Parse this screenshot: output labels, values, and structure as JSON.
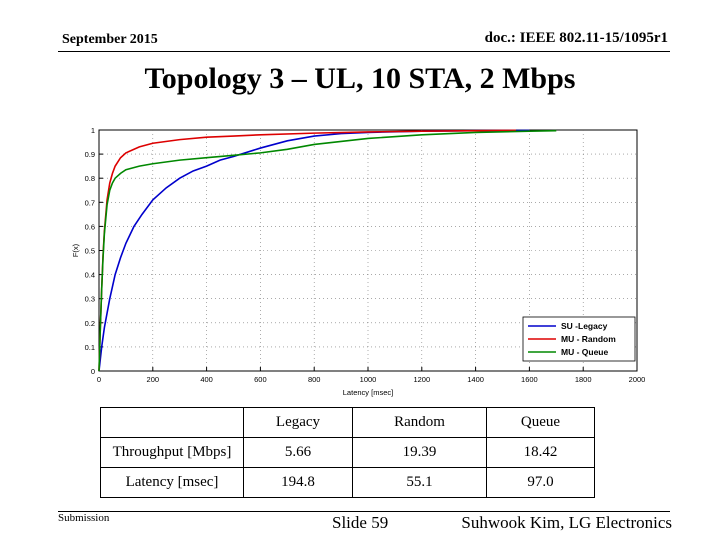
{
  "header": {
    "date": "September 2015",
    "doc": "doc.: IEEE 802.11-15/1095r1"
  },
  "title": "Topology 3 – UL, 10 STA, 2 Mbps",
  "chart_data": {
    "type": "line",
    "xlabel": "Latency [msec]",
    "ylabel": "F(x)",
    "xlim": [
      0,
      2000
    ],
    "ylim": [
      0,
      1
    ],
    "xticks": [
      0,
      200,
      400,
      600,
      800,
      1000,
      1200,
      1400,
      1600,
      1800,
      2000
    ],
    "yticks": [
      0,
      0.1,
      0.2,
      0.3,
      0.4,
      0.5,
      0.6,
      0.7,
      0.8,
      0.9,
      1
    ],
    "grid": true,
    "legend_position": "bottom-right",
    "series": [
      {
        "name": "SU -Legacy",
        "color": "#0000cc",
        "x": [
          0,
          10,
          20,
          30,
          40,
          50,
          60,
          80,
          100,
          130,
          160,
          200,
          250,
          300,
          350,
          400,
          450,
          500,
          600,
          700,
          800,
          900,
          1000,
          1200,
          1400,
          1600
        ],
        "y": [
          0,
          0.1,
          0.18,
          0.24,
          0.3,
          0.35,
          0.4,
          0.47,
          0.53,
          0.6,
          0.65,
          0.71,
          0.76,
          0.8,
          0.83,
          0.85,
          0.875,
          0.89,
          0.925,
          0.955,
          0.975,
          0.985,
          0.99,
          0.995,
          0.997,
          0.998
        ]
      },
      {
        "name": "MU - Random",
        "color": "#dd0000",
        "x": [
          0,
          5,
          10,
          15,
          20,
          30,
          40,
          50,
          60,
          80,
          100,
          150,
          200,
          300,
          400,
          500,
          600,
          800,
          1000,
          1200,
          1400,
          1500,
          1550
        ],
        "y": [
          0,
          0.18,
          0.34,
          0.48,
          0.58,
          0.71,
          0.78,
          0.82,
          0.85,
          0.885,
          0.905,
          0.93,
          0.945,
          0.96,
          0.97,
          0.975,
          0.98,
          0.987,
          0.992,
          0.995,
          0.997,
          0.998,
          0.999
        ]
      },
      {
        "name": "MU - Queue",
        "color": "#008800",
        "x": [
          0,
          5,
          10,
          15,
          20,
          30,
          40,
          50,
          60,
          80,
          100,
          150,
          200,
          300,
          400,
          500,
          600,
          700,
          800,
          1000,
          1200,
          1400,
          1600,
          1700
        ],
        "y": [
          0,
          0.18,
          0.34,
          0.47,
          0.57,
          0.69,
          0.75,
          0.78,
          0.8,
          0.82,
          0.835,
          0.85,
          0.86,
          0.875,
          0.885,
          0.895,
          0.905,
          0.92,
          0.94,
          0.965,
          0.98,
          0.99,
          0.995,
          0.997
        ]
      }
    ]
  },
  "table": {
    "headers": [
      "",
      "Legacy",
      "Random",
      "Queue"
    ],
    "rows": [
      [
        "Throughput [Mbps]",
        "5.66",
        "19.39",
        "18.42"
      ],
      [
        "Latency [msec]",
        "194.8",
        "55.1",
        "97.0"
      ]
    ]
  },
  "footer": {
    "left": "Submission",
    "mid": "Slide 59",
    "right": "Suhwook Kim, LG Electronics"
  }
}
